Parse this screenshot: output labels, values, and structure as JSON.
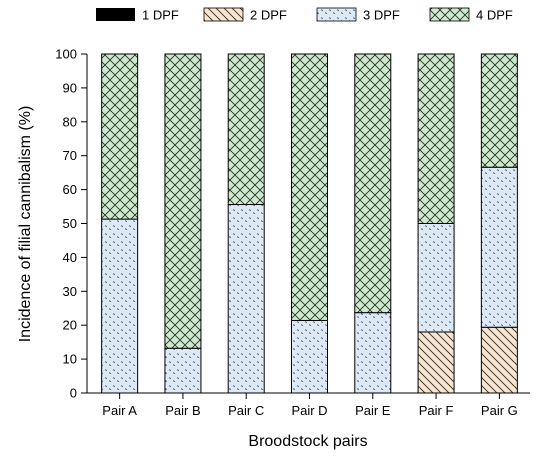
{
  "chart_data": {
    "type": "bar",
    "stacked": true,
    "categories": [
      "Pair A",
      "Pair B",
      "Pair C",
      "Pair D",
      "Pair E",
      "Pair F",
      "Pair G"
    ],
    "series": [
      {
        "name": "1 DPF",
        "pattern": "solid",
        "color": "#000000",
        "values": [
          0,
          0,
          0,
          0,
          0,
          0,
          0
        ]
      },
      {
        "name": "2 DPF",
        "pattern": "diagonal",
        "color": "#f5e6d3",
        "values": [
          0,
          0,
          0,
          0,
          0,
          18,
          19.4
        ]
      },
      {
        "name": "3 DPF",
        "pattern": "dots",
        "color": "#dde9f7",
        "values": [
          51.3,
          13.2,
          55.6,
          21.4,
          23.7,
          32,
          47.2
        ]
      },
      {
        "name": "4 DPF",
        "pattern": "crosshatch",
        "color": "#cfe8cf",
        "values": [
          48.7,
          86.8,
          44.4,
          78.6,
          76.3,
          50,
          33.4
        ]
      }
    ],
    "xlabel": "Broodstock pairs",
    "ylabel": "Incidence of filial cannibalism (%)",
    "ylim": [
      0,
      100
    ],
    "yticks": [
      0,
      10,
      20,
      30,
      40,
      50,
      60,
      70,
      80,
      90,
      100
    ],
    "grid": false,
    "legend": "top"
  }
}
